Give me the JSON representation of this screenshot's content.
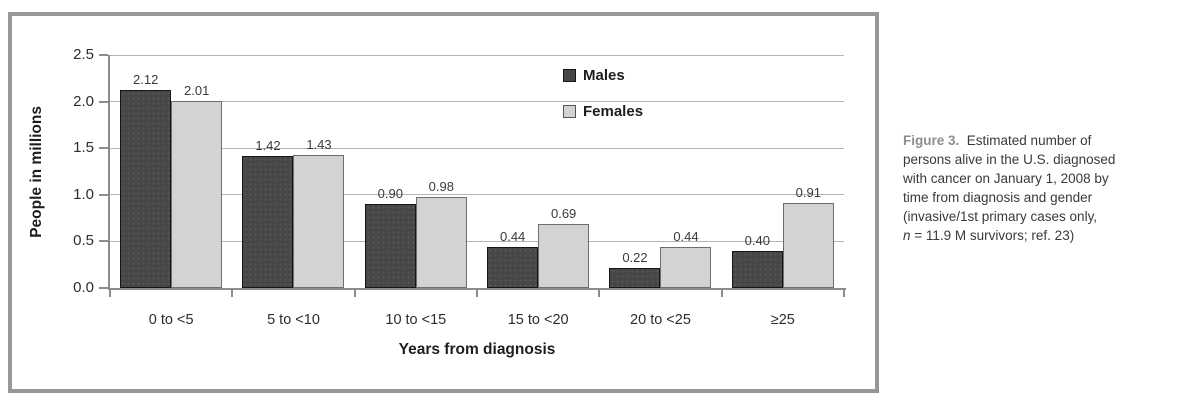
{
  "chart_data": {
    "type": "bar",
    "categories": [
      "0 to <5",
      "5 to <10",
      "10 to <15",
      "15 to <20",
      "20 to <25",
      "≥25"
    ],
    "series": [
      {
        "name": "Males",
        "color": "#474747",
        "values": [
          2.12,
          1.42,
          0.9,
          0.44,
          0.22,
          0.4
        ]
      },
      {
        "name": "Females",
        "color": "#d3d3d3",
        "values": [
          2.01,
          1.43,
          0.98,
          0.69,
          0.44,
          0.91
        ]
      }
    ],
    "xlabel": "Years from diagnosis",
    "ylabel": "People in millions",
    "ylim": [
      0,
      2.5
    ],
    "yticks": [
      0.0,
      0.5,
      1.0,
      1.5,
      2.0,
      2.5
    ],
    "ytick_labels": [
      "0.0",
      "0.5",
      "1.0",
      "1.5",
      "2.0",
      "2.5"
    ],
    "value_label_decimals": 2,
    "grid": true,
    "legend_position": "inside-upper-middle"
  },
  "caption": {
    "figure_label": "Figure 3.",
    "line1_rest": "Estimated number of",
    "line2": "persons alive in the U.S. diagnosed",
    "line3": "with cancer on January 1, 2008 by",
    "line4": "time from diagnosis and gender",
    "line5": "(invasive/1st primary cases only,",
    "line6_n": "n",
    "line6_rest": " = 11.9 M survivors; ref. 23)"
  }
}
